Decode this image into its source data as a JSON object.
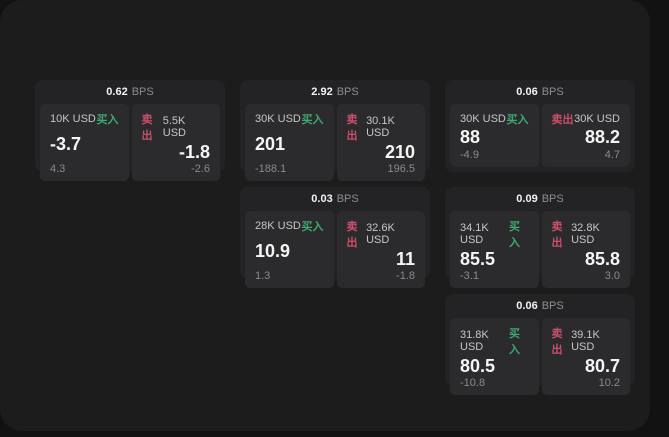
{
  "bps_unit": "BPS",
  "colors": {
    "buy_green": "#3fa96e",
    "sell_red": "#cb4f68",
    "window_bg": "#1c1c1d",
    "card_bg": "#232325",
    "panel_bg": "#2b2b2d"
  },
  "cards": [
    {
      "bps": "0.62",
      "buy": {
        "amount": "10K USD",
        "label": "买入",
        "price": "-3.7",
        "delta": "4.3"
      },
      "sell": {
        "label": "卖出",
        "amount": "5.5K USD",
        "price": "-1.8",
        "delta": "-2.6"
      }
    },
    {
      "bps": "2.92",
      "buy": {
        "amount": "30K USD",
        "label": "买入",
        "price": "201",
        "delta": "-188.1"
      },
      "sell": {
        "label": "卖出",
        "amount": "30.1K USD",
        "price": "210",
        "delta": "196.5"
      }
    },
    {
      "bps": "0.06",
      "buy": {
        "amount": "30K USD",
        "label": "买入",
        "price": "88",
        "delta": "-4.9"
      },
      "sell": {
        "label": "卖出",
        "amount": "30K USD",
        "price": "88.2",
        "delta": "4.7"
      }
    },
    {
      "bps": "0.03",
      "buy": {
        "amount": "28K USD",
        "label": "买入",
        "price": "10.9",
        "delta": "1.3"
      },
      "sell": {
        "label": "卖出",
        "amount": "32.6K USD",
        "price": "11",
        "delta": "-1.8"
      }
    },
    {
      "bps": "0.09",
      "buy": {
        "amount": "34.1K USD",
        "label": "买入",
        "price": "85.5",
        "delta": "-3.1"
      },
      "sell": {
        "label": "卖出",
        "amount": "32.8K USD",
        "price": "85.8",
        "delta": "3.0"
      }
    },
    {
      "bps": "0.06",
      "buy": {
        "amount": "31.8K USD",
        "label": "买入",
        "price": "80.5",
        "delta": "-10.8"
      },
      "sell": {
        "label": "卖出",
        "amount": "39.1K USD",
        "price": "80.7",
        "delta": "10.2"
      }
    }
  ]
}
